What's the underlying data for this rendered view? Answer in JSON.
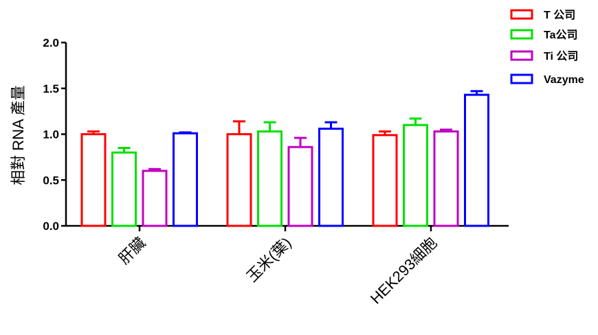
{
  "chart_data": {
    "type": "bar",
    "ylabel": "相對 RNA 產量",
    "xlabel": "",
    "ylim": [
      0,
      2.0
    ],
    "yticks": [
      "0.0",
      "0.5",
      "1.0",
      "1.5",
      "2.0"
    ],
    "grid": false,
    "legend_position": "top-right",
    "categories": [
      "肝臟",
      "玉米(葉)",
      "HEK293細胞"
    ],
    "series": [
      {
        "name": "T 公司",
        "color": "#ff0000",
        "values": [
          1.0,
          1.0,
          0.99
        ],
        "errors": [
          0.03,
          0.14,
          0.04
        ]
      },
      {
        "name": "Ta公司",
        "color": "#00e000",
        "values": [
          0.8,
          1.03,
          1.1
        ],
        "errors": [
          0.05,
          0.1,
          0.07
        ]
      },
      {
        "name": "Ti 公司",
        "color": "#c000c0",
        "values": [
          0.6,
          0.86,
          1.03
        ],
        "errors": [
          0.02,
          0.1,
          0.02
        ]
      },
      {
        "name": "Vazyme",
        "color": "#0000ff",
        "values": [
          1.01,
          1.06,
          1.43
        ],
        "errors": [
          0.01,
          0.07,
          0.04
        ]
      }
    ]
  }
}
